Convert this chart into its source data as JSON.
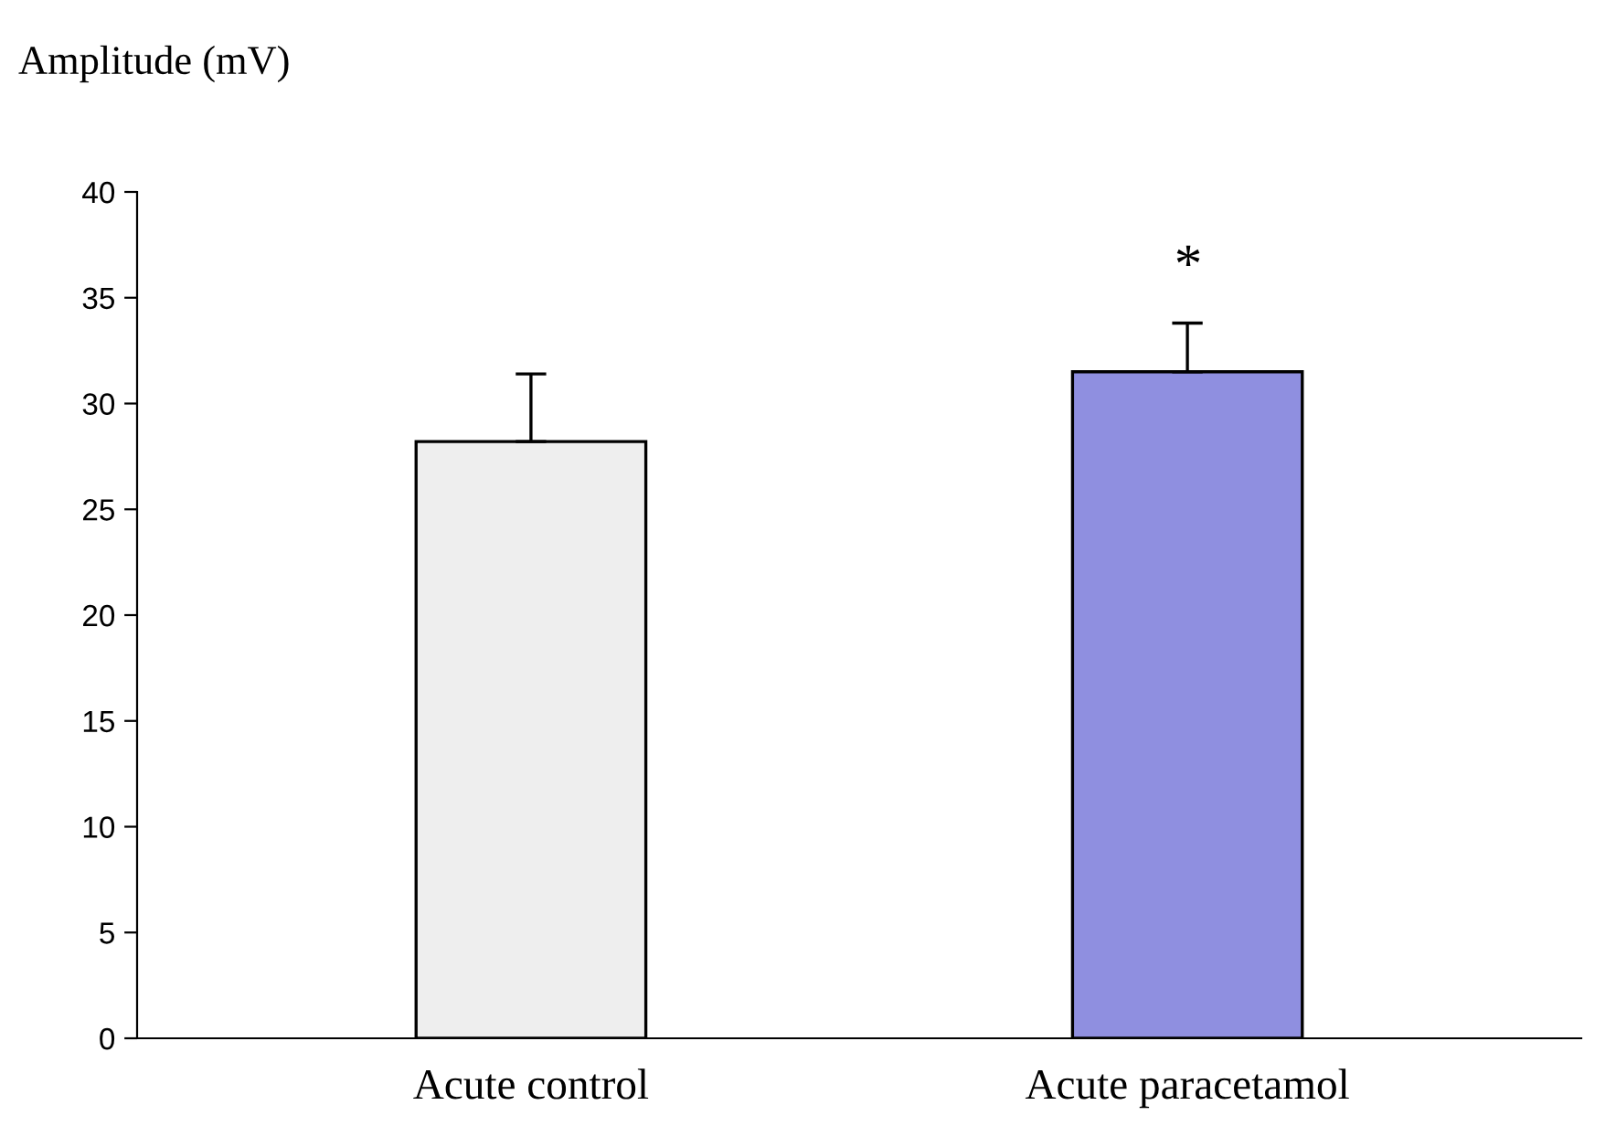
{
  "chart_data": {
    "type": "bar",
    "ylabel": "Amplitude (mV)",
    "categories": [
      "Acute control",
      "Acute paracetamol"
    ],
    "values": [
      28.2,
      31.5
    ],
    "errors": [
      [
        28.2,
        31.4
      ],
      [
        31.5,
        33.8
      ]
    ],
    "colors": [
      "#eeeeee",
      "#8f8fe0"
    ],
    "ylim": [
      0,
      40
    ],
    "yticks": [
      0,
      5,
      10,
      15,
      20,
      25,
      30,
      35,
      40
    ],
    "annotations": [
      "*"
    ],
    "grid": false,
    "legend": false
  }
}
